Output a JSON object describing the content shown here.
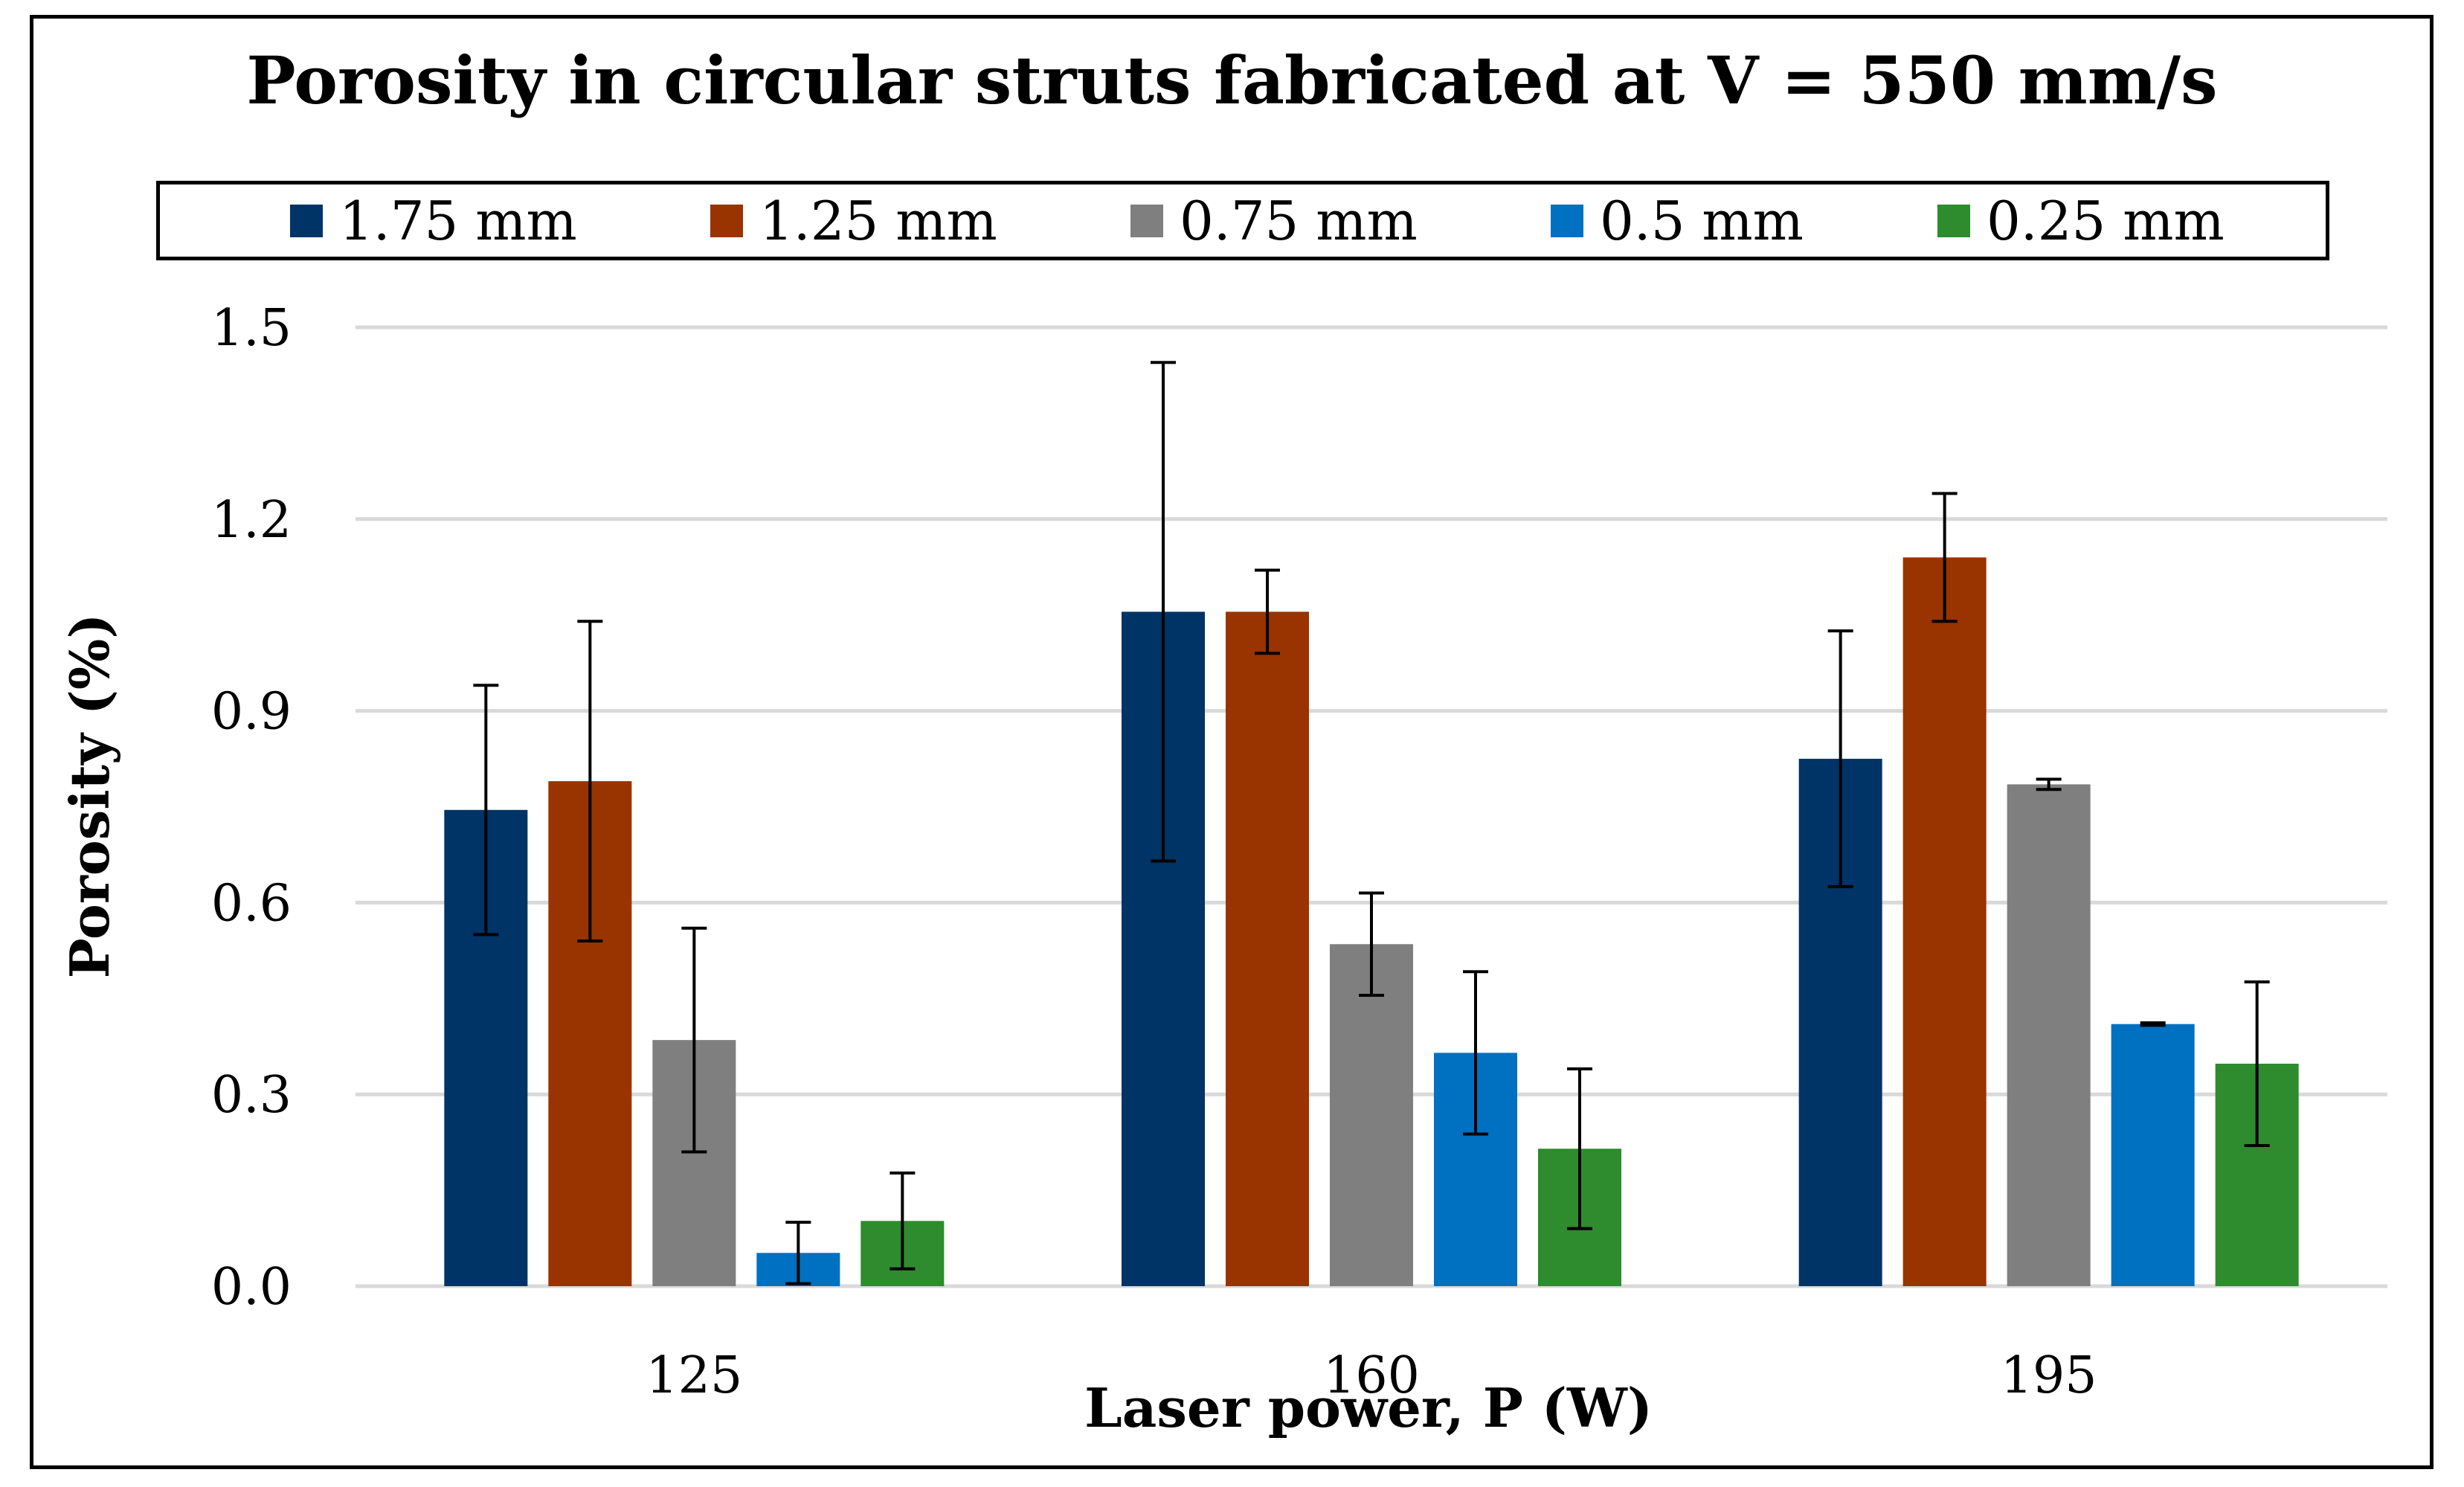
{
  "chart_data": {
    "type": "bar",
    "title": "Porosity in circular struts fabricated at V = 550 mm/s",
    "xlabel": "Laser power, P (W)",
    "ylabel": "Porosity (%)",
    "categories": [
      "125",
      "160",
      "195"
    ],
    "ylim": [
      0,
      1.5
    ],
    "yticks": [
      0.0,
      0.3,
      0.6,
      0.9,
      1.2,
      1.5
    ],
    "ytick_labels": [
      "0.0",
      "0.3",
      "0.6",
      "0.9",
      "1.2",
      "1.5"
    ],
    "grid": true,
    "legend_position": "top",
    "series": [
      {
        "name": "1.75 mm",
        "color": "#003366",
        "values": [
          0.745,
          1.055,
          0.825
        ],
        "err": [
          0.195,
          0.39,
          0.2
        ]
      },
      {
        "name": "1.25 mm",
        "color": "#993300",
        "values": [
          0.79,
          1.055,
          1.14
        ],
        "err": [
          0.25,
          0.065,
          0.1
        ]
      },
      {
        "name": "0.75 mm",
        "color": "#7F7F7F",
        "values": [
          0.385,
          0.535,
          0.785
        ],
        "err": [
          0.175,
          0.08,
          0.008
        ]
      },
      {
        "name": "0.5 mm",
        "color": "#0070C0",
        "values": [
          0.052,
          0.365,
          0.41
        ],
        "err": [
          0.048,
          0.127,
          0.002
        ]
      },
      {
        "name": "0.25 mm",
        "color": "#2E8B2E",
        "values": [
          0.102,
          0.215,
          0.348
        ],
        "err": [
          0.075,
          0.125,
          0.128
        ]
      }
    ]
  }
}
